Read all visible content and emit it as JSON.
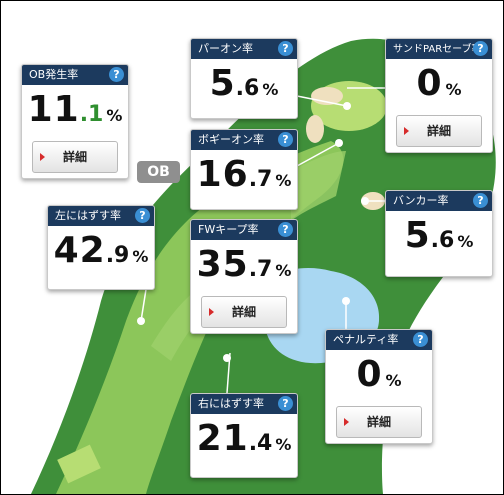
{
  "course": {
    "ob_marker": "OB",
    "colors": {
      "rough": "#3f8f3a",
      "fairway": "#8cc65a",
      "water": "#a9d7f2",
      "bunker": "#efe0bf",
      "green": "#b7dd73"
    }
  },
  "cards": {
    "ob_rate": {
      "title": "OB発生率",
      "int": "11",
      "dec": ".1",
      "pct": "%",
      "detail": "詳細",
      "help": "?"
    },
    "par_on_rate": {
      "title": "パーオン率",
      "int": "5",
      "dec": ".6",
      "pct": "%",
      "help": "?"
    },
    "sand_save_rate": {
      "title": "サンドPARセーブ率",
      "int": "0",
      "dec": "",
      "pct": "%",
      "detail": "詳細",
      "help": "?"
    },
    "bogey_on_rate": {
      "title": "ボギーオン率",
      "int": "16",
      "dec": ".7",
      "pct": "%",
      "help": "?"
    },
    "bunker_rate": {
      "title": "バンカー率",
      "int": "5",
      "dec": ".6",
      "pct": "%",
      "help": "?"
    },
    "left_miss_rate": {
      "title": "左にはずす率",
      "int": "42",
      "dec": ".9",
      "pct": "%",
      "help": "?"
    },
    "fw_keep_rate": {
      "title": "FWキープ率",
      "int": "35",
      "dec": ".7",
      "pct": "%",
      "detail": "詳細",
      "help": "?"
    },
    "penalty_rate": {
      "title": "ペナルティ率",
      "int": "0",
      "dec": "",
      "pct": "%",
      "detail": "詳細",
      "help": "?"
    },
    "right_miss_rate": {
      "title": "右にはずす率",
      "int": "21",
      "dec": ".4",
      "pct": "%",
      "help": "?"
    }
  }
}
